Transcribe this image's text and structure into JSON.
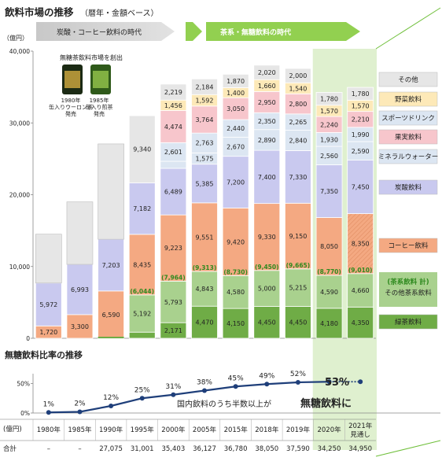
{
  "title": "飲料市場の推移",
  "title_sub": "（暦年・金額ベース）",
  "unit_label": "（億円）",
  "eras": [
    "炭酸・コーヒー飲料の時代",
    "茶系・無糖飲料の時代"
  ],
  "product_note": {
    "heading": "無糖茶飲料市場を創出",
    "items": [
      {
        "lines": [
          "1980年",
          "缶入りウーロン茶",
          "発売"
        ]
      },
      {
        "lines": [
          "1985年",
          "缶入り煎茶",
          "発売"
        ]
      }
    ]
  },
  "chart_data": [
    {
      "type": "bar",
      "stacked": true,
      "categories": [
        "1980年",
        "1985年",
        "1990年",
        "1995年",
        "2000年",
        "2005年",
        "2015年",
        "2018年",
        "2019年",
        "2020年",
        "2021年見通し"
      ],
      "ylim": [
        0,
        40000
      ],
      "yticks": [
        "0",
        "10,000",
        "20,000",
        "30,000",
        "40,000"
      ],
      "series": [
        {
          "name": "緑茶飲料",
          "values": [
            null,
            null,
            null,
            852,
            2171,
            4470,
            4150,
            4450,
            4450,
            4180,
            4350
          ],
          "color": "#6fac46"
        },
        {
          "name": "その他茶系飲料",
          "values": [
            null,
            null,
            null,
            5192,
            5793,
            4843,
            4580,
            5000,
            5215,
            4590,
            4660
          ],
          "color": "#a9d18e"
        },
        {
          "name": "コーヒー飲料",
          "values": [
            1720,
            3300,
            6590,
            8435,
            9223,
            9551,
            9420,
            9330,
            9150,
            8050,
            8350
          ],
          "color": "#f4a982"
        },
        {
          "name": "炭酸飲料",
          "values": [
            5972,
            6993,
            7203,
            7182,
            6489,
            5385,
            7200,
            7400,
            7330,
            7350,
            7450
          ],
          "color": "#c9c9ef"
        },
        {
          "name": "ミネラルウォーター",
          "values": [
            null,
            null,
            null,
            null,
            977,
            1575,
            2670,
            2890,
            2840,
            2560,
            2590
          ],
          "color": "#dce6f2"
        },
        {
          "name": "スポーツドリンク",
          "values": [
            null,
            null,
            null,
            null,
            2601,
            2763,
            2440,
            2350,
            2265,
            1930,
            1990
          ],
          "color": "#dce6f2"
        },
        {
          "name": "果実飲料",
          "values": [
            null,
            null,
            null,
            null,
            4474,
            3764,
            3050,
            2950,
            2800,
            2240,
            2210
          ],
          "color": "#f7c6cc"
        },
        {
          "name": "野菜飲料",
          "values": [
            null,
            null,
            null,
            null,
            1456,
            1592,
            1400,
            1660,
            1540,
            1570,
            1570
          ],
          "color": "#fde9b8"
        },
        {
          "name": "その他",
          "values": [
            null,
            null,
            null,
            9340,
            2219,
            2184,
            1870,
            2020,
            2000,
            1780,
            1780
          ],
          "color": "#e6e6e6"
        }
      ],
      "visible_totals": [
        14500,
        19000,
        27075,
        31001,
        35403,
        36127,
        36780,
        38050,
        37590,
        34250,
        34950
      ],
      "tea_totals": [
        "",
        "",
        "",
        "(6,044)",
        "(7,964)",
        "(9,313)",
        "(8,730)",
        "(9,450)",
        "(9,665)",
        "(8,770)",
        "(9,010)"
      ],
      "legend": [
        "その他",
        "野菜飲料",
        "スポーツドリンク",
        "果実飲料",
        "ミネラルウォーター",
        "炭酸飲料",
        "コーヒー飲料",
        "(茶系飲料 計)",
        "その他茶系飲料",
        "緑茶飲料"
      ]
    },
    {
      "type": "line",
      "title": "無糖飲料比率の推移",
      "categories": [
        "1980年",
        "1985年",
        "1990年",
        "1995年",
        "2000年",
        "2005年",
        "2015年",
        "2018年",
        "2019年",
        "2020年",
        "2021年見通し"
      ],
      "values": [
        1,
        2,
        12,
        25,
        31,
        38,
        45,
        49,
        52,
        53,
        53
      ],
      "labels": [
        "1%",
        "2%",
        "12%",
        "25%",
        "31%",
        "38%",
        "45%",
        "49%",
        "52%",
        "53%",
        ""
      ],
      "ylim": [
        0,
        60
      ],
      "yticks": [
        "0%",
        "50%"
      ]
    }
  ],
  "annotation": {
    "pre": "国内飲料のうち半数以上が",
    "emph": "無糖飲料に"
  },
  "table": {
    "unit": "(億円)",
    "years": [
      "1980年",
      "1985年",
      "1990年",
      "1995年",
      "2000年",
      "2005年",
      "2015年",
      "2018年",
      "2019年",
      "2020年",
      "2021年\n見通し"
    ],
    "total_label": "合計",
    "totals": [
      "–",
      "–",
      "27,075",
      "31,001",
      "35,403",
      "36,127",
      "36,780",
      "38,050",
      "37,590",
      "34,250",
      "34,950"
    ]
  }
}
